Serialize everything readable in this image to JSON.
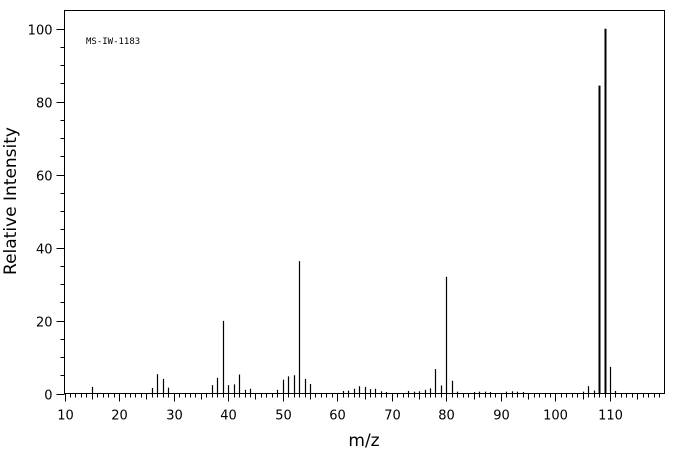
{
  "chart_data": {
    "type": "bar",
    "title": "",
    "annotation": "MS-IW-1183",
    "xlabel": "m/z",
    "ylabel": "Relative Intensity",
    "xlim": [
      10,
      120
    ],
    "ylim": [
      0,
      105
    ],
    "xticks": [
      10,
      20,
      30,
      40,
      50,
      60,
      70,
      80,
      90,
      100,
      110
    ],
    "yticks": [
      0,
      20,
      40,
      60,
      80,
      100
    ],
    "grid": false,
    "legend": "none",
    "bar_color": "#000000",
    "series": [
      {
        "x": [
          15,
          26,
          27,
          28,
          29,
          37,
          38,
          39,
          40,
          41,
          42,
          43,
          44,
          49,
          50,
          51,
          52,
          53,
          54,
          55,
          61,
          62,
          63,
          64,
          65,
          66,
          67,
          68,
          69,
          73,
          74,
          75,
          76,
          77,
          78,
          79,
          80,
          81,
          82,
          85,
          86,
          87,
          88,
          91,
          92,
          93,
          94,
          105,
          106,
          107,
          108,
          109,
          110,
          111
        ],
        "y": [
          1.8,
          1.5,
          5.3,
          4.0,
          1.6,
          2.3,
          4.3,
          19.9,
          2.3,
          2.5,
          5.2,
          1.0,
          1.3,
          1.0,
          3.8,
          4.7,
          5.0,
          36.3,
          4.0,
          2.6,
          0.7,
          0.8,
          1.3,
          2.0,
          1.8,
          1.2,
          1.3,
          0.6,
          0.4,
          0.7,
          0.5,
          0.6,
          1.0,
          1.4,
          6.7,
          2.2,
          32.0,
          3.5,
          0.5,
          0.4,
          0.5,
          0.5,
          0.4,
          0.5,
          0.6,
          0.5,
          0.4,
          0.5,
          2.0,
          0.8,
          84.4,
          100.0,
          7.3,
          0.7
        ]
      }
    ]
  }
}
